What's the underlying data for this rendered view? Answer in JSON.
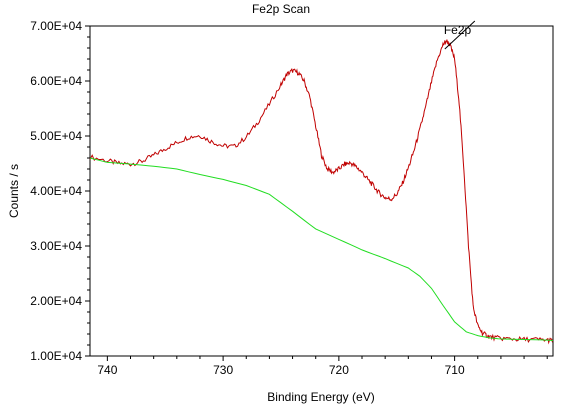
{
  "chart_data": {
    "type": "line",
    "title": "Fe2p Scan",
    "xlabel": "Binding Energy (eV)",
    "ylabel": "Counts / s",
    "xlim": [
      741.5,
      701.5
    ],
    "ylim": [
      10000,
      70000
    ],
    "x_reversed": true,
    "x_ticks": [
      740,
      730,
      720,
      710
    ],
    "x_tick_labels": [
      "740",
      "730",
      "720",
      "710"
    ],
    "y_ticks": [
      10000,
      20000,
      30000,
      40000,
      50000,
      60000,
      70000
    ],
    "y_tick_labels": [
      "1.00E+04",
      "2.00E+04",
      "3.00E+04",
      "4.00E+04",
      "5.00E+04",
      "6.00E+04",
      "7.00E+04"
    ],
    "grid": false,
    "annotations": [
      {
        "text": "Fe2p",
        "x": 710.5,
        "y": 68000
      }
    ],
    "series": [
      {
        "color": "#c00000",
        "x": [
          741.5,
          740,
          739,
          738,
          737,
          736,
          735,
          734,
          733,
          732,
          731,
          730,
          729,
          728,
          727,
          726,
          725,
          724.5,
          724,
          723.5,
          723,
          722.5,
          722,
          721.5,
          721,
          720.5,
          720,
          719.5,
          719,
          718.5,
          718,
          717.5,
          717,
          716.5,
          716,
          715.5,
          715,
          714.5,
          714,
          713.5,
          713,
          712.5,
          712,
          711.5,
          711,
          710.7,
          710.4,
          710,
          709.6,
          709.2,
          708.8,
          708.4,
          708,
          707.6,
          707.2,
          706.8,
          706,
          705,
          704,
          703,
          702,
          701.5
        ],
        "values": [
          46200,
          45500,
          45000,
          44900,
          45400,
          46500,
          47700,
          48800,
          49800,
          50100,
          49000,
          48200,
          48100,
          49800,
          52500,
          55800,
          59300,
          61200,
          61900,
          61500,
          60000,
          57000,
          51800,
          46500,
          44000,
          43400,
          44000,
          44900,
          45100,
          44400,
          43400,
          42100,
          40900,
          39600,
          38800,
          38500,
          39400,
          41400,
          44200,
          47400,
          51200,
          55300,
          59800,
          63800,
          66600,
          67300,
          66600,
          64000,
          56000,
          44000,
          30000,
          19000,
          15500,
          14200,
          13700,
          13400,
          13200,
          13100,
          13000,
          13000,
          12900,
          12800
        ]
      },
      {
        "color": "#22dd22",
        "x": [
          741.5,
          740,
          738,
          736,
          734,
          732,
          730,
          728,
          726,
          724,
          722,
          720,
          718,
          716,
          714,
          713,
          712,
          711,
          710,
          709,
          708,
          707,
          706,
          704,
          702,
          701.5
        ],
        "values": [
          46000,
          45200,
          44900,
          44500,
          44000,
          43000,
          42100,
          41000,
          39400,
          36300,
          33100,
          31200,
          29300,
          27700,
          26000,
          24500,
          22300,
          19200,
          16200,
          14400,
          13700,
          13300,
          13100,
          13000,
          12900,
          12800
        ]
      }
    ]
  }
}
